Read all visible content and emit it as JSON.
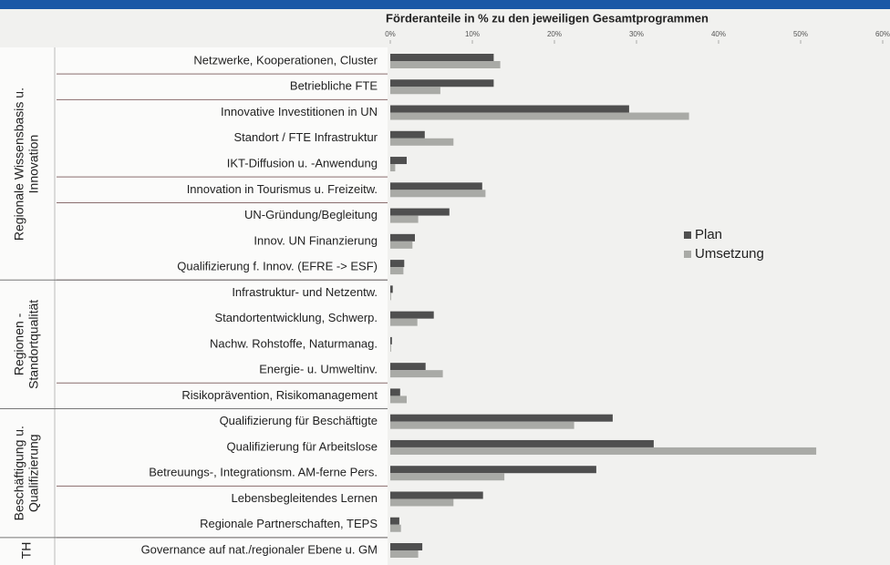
{
  "chart_data": {
    "type": "bar",
    "orientation": "horizontal",
    "title": "Förderanteile in % zu den jeweiligen  Gesamtprogrammen",
    "categories": [
      "Netzwerke, Kooperationen, Cluster",
      "Betriebliche FTE",
      "Innovative Investitionen  in UN",
      "Standort / FTE Infrastruktur",
      "IKT-Diffusion u. -Anwendung",
      "Innovation in Tourismus u. Freizeitw.",
      "UN-Gründung/Begleitung",
      "Innov. UN Finanzierung",
      "Qualifizierung f. Innov. (EFRE -> ESF)",
      "Infrastruktur- und Netzentw.",
      "Standortentwicklung, Schwerp.",
      "Nachw. Rohstoffe, Naturmanag.",
      "Energie- u. Umweltinv.",
      "Risikoprävention, Risikomanagement",
      "Qualifizierung für Beschäftigte",
      "Qualifizierung für Arbeitslose",
      "Betreuungs-, Integrationsm. AM-ferne Pers.",
      "Lebensbegleitendes Lernen",
      "Regionale Partnerschaften, TEPS",
      "Governance auf nat./regionaler Ebene u. GM"
    ],
    "series": [
      {
        "name": "Plan",
        "color": "#4f4f4f",
        "values": [
          12.6,
          12.6,
          29.1,
          4.2,
          2.0,
          11.2,
          7.2,
          3.0,
          1.7,
          0.3,
          5.3,
          0.2,
          4.3,
          1.2,
          27.1,
          32.1,
          25.1,
          11.3,
          1.1,
          3.9
        ]
      },
      {
        "name": "Umsetzung",
        "color": "#a9aaa6",
        "values": [
          13.4,
          6.1,
          36.4,
          7.7,
          0.6,
          11.6,
          3.4,
          2.7,
          1.6,
          0.1,
          3.3,
          0.1,
          6.4,
          2.0,
          22.4,
          51.9,
          13.9,
          7.7,
          1.3,
          3.4
        ]
      }
    ],
    "groups": [
      {
        "lines": [
          "Regionale Wissensbasis u.",
          "Innovation"
        ],
        "start": 0,
        "end": 8
      },
      {
        "lines": [
          "Regionen -",
          "Standortqualität"
        ],
        "start": 9,
        "end": 13
      },
      {
        "lines": [
          "Beschäftigung u.",
          "Qualifizierung"
        ],
        "start": 14,
        "end": 18
      },
      {
        "lines": [
          "TH"
        ],
        "start": 19,
        "end": 19
      }
    ],
    "xlim": [
      0,
      60
    ],
    "xticks": [
      {
        "value": 0,
        "label": "0%"
      },
      {
        "value": 10,
        "label": "10%"
      },
      {
        "value": 20,
        "label": "20%"
      },
      {
        "value": 30,
        "label": "30%"
      },
      {
        "value": 40,
        "label": "40%"
      },
      {
        "value": 50,
        "label": "50%"
      },
      {
        "value": 60,
        "label": "60%"
      }
    ],
    "legend": "right"
  }
}
